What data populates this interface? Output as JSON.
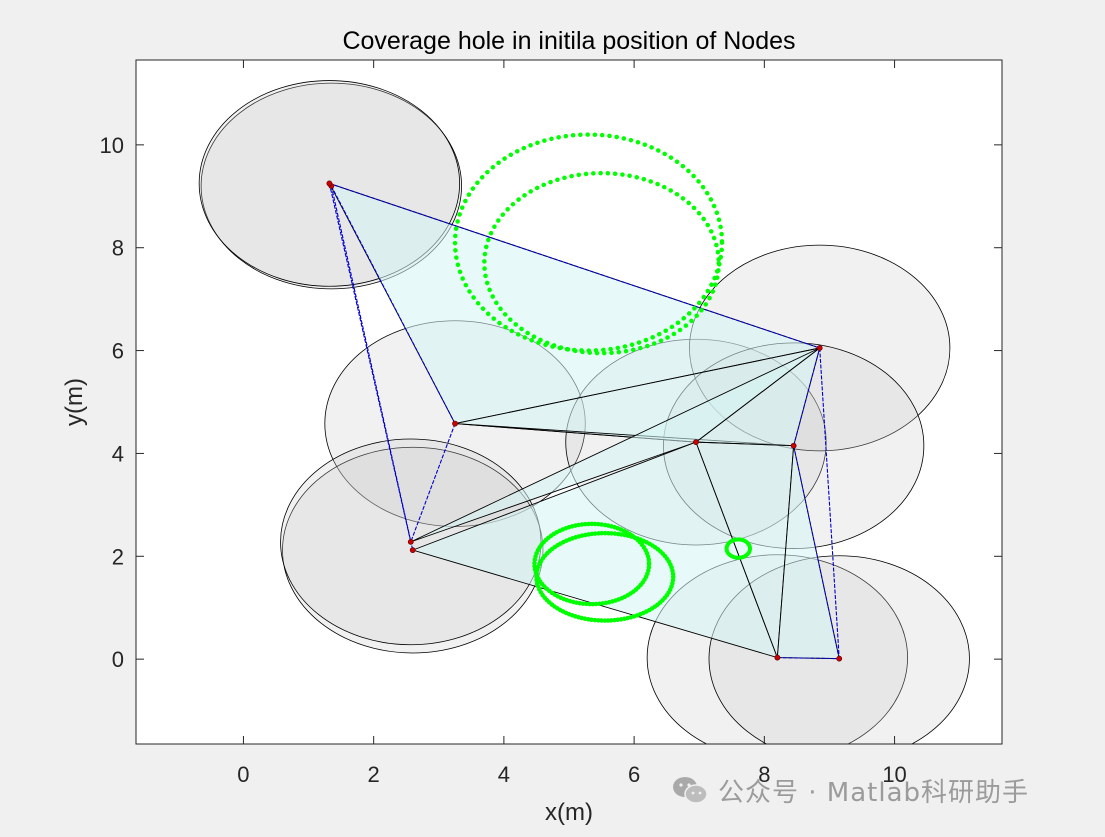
{
  "chart_data": {
    "type": "scatter",
    "title": "Coverage hole in initila position of Nodes",
    "xlabel": "x(m)",
    "ylabel": "y(m)",
    "xlim": [
      -1.65,
      11.65
    ],
    "ylim": [
      -1.65,
      11.65
    ],
    "xticks": [
      0,
      2,
      4,
      6,
      8,
      10
    ],
    "yticks": [
      0,
      2,
      4,
      6,
      8,
      10
    ],
    "grid": false,
    "sensing_radius": 2,
    "nodes": [
      {
        "x": 1.35,
        "y": 9.2
      },
      {
        "x": 1.32,
        "y": 9.25
      },
      {
        "x": 3.25,
        "y": 4.58
      },
      {
        "x": 2.6,
        "y": 2.12
      },
      {
        "x": 2.57,
        "y": 2.28
      },
      {
        "x": 6.95,
        "y": 4.22
      },
      {
        "x": 8.85,
        "y": 6.05
      },
      {
        "x": 8.45,
        "y": 4.15
      },
      {
        "x": 8.2,
        "y": 0.03
      },
      {
        "x": 9.15,
        "y": 0.01
      }
    ],
    "triangles": [
      [
        [
          1.32,
          9.25
        ],
        [
          8.85,
          6.05
        ],
        [
          3.25,
          4.58
        ]
      ],
      [
        [
          3.25,
          4.58
        ],
        [
          8.85,
          6.05
        ],
        [
          6.95,
          4.22
        ]
      ],
      [
        [
          3.25,
          4.58
        ],
        [
          6.95,
          4.22
        ],
        [
          8.45,
          4.15
        ]
      ],
      [
        [
          6.95,
          4.22
        ],
        [
          8.85,
          6.05
        ],
        [
          8.45,
          4.15
        ]
      ],
      [
        [
          2.6,
          2.12
        ],
        [
          6.95,
          4.22
        ],
        [
          8.2,
          0.03
        ]
      ],
      [
        [
          2.57,
          2.28
        ],
        [
          8.85,
          6.05
        ],
        [
          6.95,
          4.22
        ]
      ],
      [
        [
          6.95,
          4.22
        ],
        [
          8.45,
          4.15
        ],
        [
          8.2,
          0.03
        ]
      ],
      [
        [
          8.45,
          4.15
        ],
        [
          8.2,
          0.03
        ],
        [
          9.15,
          0.01
        ]
      ]
    ],
    "blue_edges": [
      [
        [
          1.32,
          9.25
        ],
        [
          8.85,
          6.05
        ]
      ],
      [
        [
          1.35,
          9.2
        ],
        [
          2.6,
          2.12
        ]
      ],
      [
        [
          1.32,
          9.25
        ],
        [
          2.57,
          2.28
        ]
      ],
      [
        [
          1.35,
          9.2
        ],
        [
          3.25,
          4.58
        ]
      ],
      [
        [
          3.25,
          4.58
        ],
        [
          2.57,
          2.28
        ]
      ],
      [
        [
          8.85,
          6.05
        ],
        [
          9.15,
          0.01
        ]
      ],
      [
        [
          8.45,
          4.15
        ],
        [
          9.15,
          0.01
        ]
      ],
      [
        [
          8.2,
          0.03
        ],
        [
          9.15,
          0.01
        ]
      ],
      [
        [
          8.45,
          4.15
        ],
        [
          8.85,
          6.05
        ]
      ]
    ],
    "hole_circles": [
      {
        "cx": 5.3,
        "cy": 8.1,
        "r": 2.05,
        "ry": 2.1
      },
      {
        "cx": 5.5,
        "cy": 7.7,
        "r": 1.8,
        "ry": 1.75
      },
      {
        "cx": 5.55,
        "cy": 1.6,
        "r": 1.05,
        "ry": 0.85
      },
      {
        "cx": 5.35,
        "cy": 1.85,
        "r": 0.88,
        "ry": 0.78
      },
      {
        "cx": 7.6,
        "cy": 2.15,
        "r": 0.18,
        "ry": 0.18
      }
    ],
    "colors": {
      "node": "#cc0000",
      "coverage_fill": "#cccccc",
      "triangle_fill": "#d6f4f4",
      "blue_edge": "#0000cc",
      "black_edge": "#000000",
      "hole": "#00ff00"
    }
  },
  "watermark": {
    "text": "公众号 · Matlab科研助手",
    "icon": "wechat-icon"
  }
}
